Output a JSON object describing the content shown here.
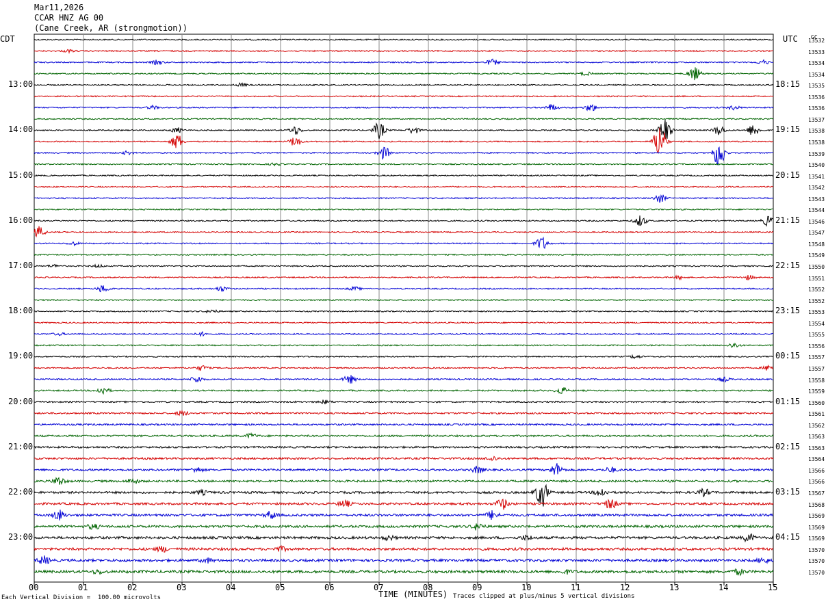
{
  "header": {
    "date": "Mar11,2026",
    "station": "CCAR HNZ AG 00",
    "location": "(Cane Creek, AR (strongmotion))"
  },
  "left_tz": "CDT",
  "right_tz": "UTC",
  "gc_label": "GC",
  "footer": {
    "scale": "Each Vertical Division =  100.00 microvolts",
    "xlabel": "TIME (MINUTES)",
    "clip": "Traces clipped at plus/minus 5 vertical divisions"
  },
  "colors": {
    "trace_cycle": [
      "#000000",
      "#d40000",
      "#0000d4",
      "#006400"
    ],
    "grid": "#888888"
  },
  "chart_data": {
    "type": "line",
    "title": "CCAR HNZ AG 00",
    "xlabel": "TIME (MINUTES)",
    "xlim": [
      0,
      15
    ],
    "x_ticks": [
      "00",
      "01",
      "02",
      "03",
      "04",
      "05",
      "06",
      "07",
      "08",
      "09",
      "10",
      "11",
      "12",
      "13",
      "14",
      "15"
    ],
    "left_hour_labels": [
      "13:00",
      "14:00",
      "15:00",
      "16:00",
      "17:00",
      "18:00",
      "19:00",
      "20:00",
      "21:00",
      "22:00",
      "23:00"
    ],
    "right_hour_labels": [
      "18:15",
      "19:15",
      "20:15",
      "21:15",
      "22:15",
      "23:15",
      "00:15",
      "01:15",
      "02:15",
      "03:15",
      "04:15"
    ],
    "row_gc_values": [
      "13532",
      "13533",
      "13534",
      "13534",
      "13535",
      "13536",
      "13536",
      "13537",
      "13538",
      "13538",
      "13539",
      "13540",
      "13541",
      "13542",
      "13543",
      "13544",
      "13546",
      "13547",
      "13548",
      "13549",
      "13550",
      "13551",
      "13552",
      "13552",
      "13553",
      "13554",
      "13555",
      "13556",
      "13557",
      "13557",
      "13558",
      "13559",
      "13560",
      "13561",
      "13562",
      "13563",
      "13563",
      "13564",
      "13566",
      "13566",
      "13567",
      "13568",
      "13569",
      "13569",
      "13569",
      "13570",
      "13570",
      "13570"
    ],
    "grid": true,
    "events": [
      {
        "row": 1,
        "minute": 0.7,
        "amp": 0.3
      },
      {
        "row": 2,
        "minute": 2.5,
        "amp": 0.5
      },
      {
        "row": 2,
        "minute": 9.3,
        "amp": 0.7
      },
      {
        "row": 2,
        "minute": 14.8,
        "amp": 0.5
      },
      {
        "row": 3,
        "minute": 11.2,
        "amp": 0.4
      },
      {
        "row": 3,
        "minute": 13.4,
        "amp": 1.6
      },
      {
        "row": 4,
        "minute": 4.2,
        "amp": 0.4
      },
      {
        "row": 6,
        "minute": 2.4,
        "amp": 0.4
      },
      {
        "row": 6,
        "minute": 10.5,
        "amp": 0.8
      },
      {
        "row": 6,
        "minute": 11.3,
        "amp": 0.9
      },
      {
        "row": 6,
        "minute": 14.2,
        "amp": 0.5
      },
      {
        "row": 8,
        "minute": 2.9,
        "amp": 0.6
      },
      {
        "row": 8,
        "minute": 5.3,
        "amp": 1.0
      },
      {
        "row": 8,
        "minute": 7.0,
        "amp": 2.0
      },
      {
        "row": 8,
        "minute": 7.7,
        "amp": 0.8
      },
      {
        "row": 8,
        "minute": 12.8,
        "amp": 3.0
      },
      {
        "row": 8,
        "minute": 13.9,
        "amp": 1.2
      },
      {
        "row": 8,
        "minute": 14.6,
        "amp": 1.4
      },
      {
        "row": 9,
        "minute": 2.9,
        "amp": 1.8
      },
      {
        "row": 9,
        "minute": 5.3,
        "amp": 1.2
      },
      {
        "row": 9,
        "minute": 12.7,
        "amp": 4.5
      },
      {
        "row": 10,
        "minute": 1.9,
        "amp": 0.4
      },
      {
        "row": 10,
        "minute": 7.1,
        "amp": 1.5
      },
      {
        "row": 10,
        "minute": 13.9,
        "amp": 3.5
      },
      {
        "row": 11,
        "minute": 4.9,
        "amp": 0.3
      },
      {
        "row": 14,
        "minute": 12.7,
        "amp": 1.0
      },
      {
        "row": 16,
        "minute": 12.3,
        "amp": 1.3
      },
      {
        "row": 16,
        "minute": 14.9,
        "amp": 1.2
      },
      {
        "row": 17,
        "minute": 0.1,
        "amp": 1.3
      },
      {
        "row": 18,
        "minute": 0.8,
        "amp": 0.4
      },
      {
        "row": 18,
        "minute": 10.3,
        "amp": 1.6
      },
      {
        "row": 20,
        "minute": 0.4,
        "amp": 0.3
      },
      {
        "row": 20,
        "minute": 1.3,
        "amp": 0.3
      },
      {
        "row": 21,
        "minute": 13.1,
        "amp": 0.4
      },
      {
        "row": 21,
        "minute": 14.5,
        "amp": 0.5
      },
      {
        "row": 22,
        "minute": 1.4,
        "amp": 0.9
      },
      {
        "row": 22,
        "minute": 3.8,
        "amp": 0.6
      },
      {
        "row": 22,
        "minute": 6.5,
        "amp": 0.4
      },
      {
        "row": 24,
        "minute": 3.6,
        "amp": 0.4
      },
      {
        "row": 26,
        "minute": 0.5,
        "amp": 0.3
      },
      {
        "row": 26,
        "minute": 3.4,
        "amp": 0.4
      },
      {
        "row": 27,
        "minute": 14.2,
        "amp": 0.6
      },
      {
        "row": 28,
        "minute": 12.2,
        "amp": 0.4
      },
      {
        "row": 29,
        "minute": 3.4,
        "amp": 0.6
      },
      {
        "row": 29,
        "minute": 14.9,
        "amp": 0.6
      },
      {
        "row": 30,
        "minute": 3.3,
        "amp": 0.8
      },
      {
        "row": 30,
        "minute": 6.4,
        "amp": 1.0
      },
      {
        "row": 30,
        "minute": 14.0,
        "amp": 0.5
      },
      {
        "row": 31,
        "minute": 1.4,
        "amp": 0.9
      },
      {
        "row": 31,
        "minute": 10.7,
        "amp": 0.8
      },
      {
        "row": 32,
        "minute": 5.9,
        "amp": 0.4
      },
      {
        "row": 33,
        "minute": 3.0,
        "amp": 0.6
      },
      {
        "row": 35,
        "minute": 4.4,
        "amp": 0.5
      },
      {
        "row": 37,
        "minute": 9.3,
        "amp": 0.5
      },
      {
        "row": 38,
        "minute": 3.3,
        "amp": 0.6
      },
      {
        "row": 38,
        "minute": 9.0,
        "amp": 0.8
      },
      {
        "row": 38,
        "minute": 10.6,
        "amp": 1.5
      },
      {
        "row": 38,
        "minute": 11.7,
        "amp": 0.6
      },
      {
        "row": 39,
        "minute": 0.5,
        "amp": 1.0
      },
      {
        "row": 39,
        "minute": 2.0,
        "amp": 0.6
      },
      {
        "row": 40,
        "minute": 3.4,
        "amp": 0.5
      },
      {
        "row": 40,
        "minute": 10.3,
        "amp": 3.5
      },
      {
        "row": 40,
        "minute": 11.5,
        "amp": 1.0
      },
      {
        "row": 40,
        "minute": 13.6,
        "amp": 0.8
      },
      {
        "row": 41,
        "minute": 6.3,
        "amp": 0.8
      },
      {
        "row": 41,
        "minute": 9.5,
        "amp": 1.3
      },
      {
        "row": 41,
        "minute": 11.7,
        "amp": 1.2
      },
      {
        "row": 42,
        "minute": 0.5,
        "amp": 1.2
      },
      {
        "row": 42,
        "minute": 4.8,
        "amp": 0.9
      },
      {
        "row": 42,
        "minute": 9.3,
        "amp": 1.0
      },
      {
        "row": 43,
        "minute": 1.2,
        "amp": 0.6
      },
      {
        "row": 43,
        "minute": 9.0,
        "amp": 0.8
      },
      {
        "row": 44,
        "minute": 7.2,
        "amp": 0.5
      },
      {
        "row": 44,
        "minute": 10.0,
        "amp": 0.5
      },
      {
        "row": 44,
        "minute": 14.5,
        "amp": 0.9
      },
      {
        "row": 45,
        "minute": 2.6,
        "amp": 0.6
      },
      {
        "row": 45,
        "minute": 5.0,
        "amp": 0.5
      },
      {
        "row": 46,
        "minute": 0.2,
        "amp": 0.9
      },
      {
        "row": 46,
        "minute": 3.5,
        "amp": 0.5
      },
      {
        "row": 46,
        "minute": 14.8,
        "amp": 0.6
      },
      {
        "row": 47,
        "minute": 1.3,
        "amp": 0.4
      },
      {
        "row": 47,
        "minute": 10.8,
        "amp": 0.4
      },
      {
        "row": 47,
        "minute": 14.3,
        "amp": 0.6
      }
    ]
  }
}
